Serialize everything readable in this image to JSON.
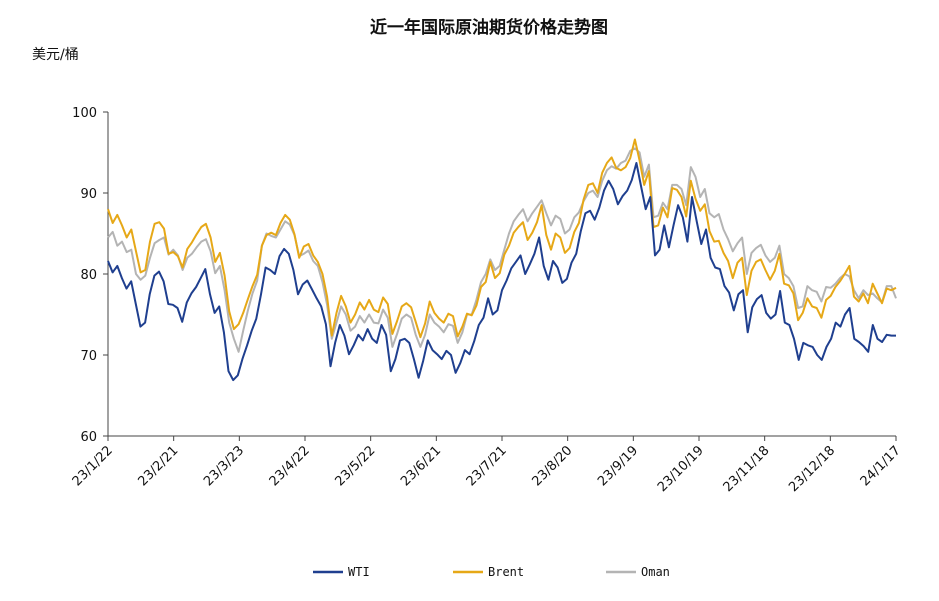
{
  "chart_data": {
    "type": "line",
    "title": "近一年国际原油期货价格走势图",
    "ylabel": "美元/桶",
    "xlabel": "",
    "ylim": [
      60,
      100
    ],
    "yticks": [
      60,
      70,
      80,
      90,
      100
    ],
    "x_start": "23/1/22",
    "x_end": "24/1/17",
    "xticks": [
      "23/1/22",
      "23/2/21",
      "23/3/23",
      "23/4/22",
      "23/5/22",
      "23/6/21",
      "23/7/21",
      "23/8/20",
      "23/9/19",
      "23/10/19",
      "23/11/18",
      "23/12/18",
      "24/1/17"
    ],
    "grid": false,
    "legend_position": "bottom",
    "series": [
      {
        "name": "WTI",
        "color": "#1f3f8f",
        "values": [
          81.6,
          80.2,
          81.0,
          79.5,
          78.2,
          79.1,
          76.3,
          73.5,
          74.0,
          77.5,
          79.8,
          80.3,
          79.1,
          76.3,
          76.2,
          75.8,
          74.1,
          76.5,
          77.6,
          78.4,
          79.5,
          80.6,
          77.5,
          75.2,
          76.0,
          72.8,
          68.0,
          66.9,
          67.5,
          69.5,
          71.2,
          73.0,
          74.5,
          77.5,
          80.8,
          80.5,
          80.0,
          82.2,
          83.1,
          82.5,
          80.5,
          77.5,
          78.7,
          79.2,
          78.1,
          77.0,
          76.0,
          73.8,
          68.6,
          71.5,
          73.7,
          72.4,
          70.1,
          71.2,
          72.5,
          71.8,
          73.2,
          72.0,
          71.5,
          73.7,
          72.5,
          68.0,
          69.5,
          71.8,
          72.0,
          71.5,
          69.5,
          67.2,
          69.3,
          71.8,
          70.6,
          70.1,
          69.5,
          70.5,
          70.0,
          67.8,
          69.0,
          70.6,
          70.1,
          71.7,
          73.7,
          74.6,
          77.0,
          75.0,
          75.5,
          78.0,
          79.2,
          80.7,
          81.5,
          82.3,
          80.0,
          81.2,
          82.5,
          84.5,
          81.0,
          79.3,
          81.6,
          80.8,
          78.9,
          79.4,
          81.4,
          82.5,
          85.3,
          87.5,
          87.8,
          86.7,
          88.2,
          90.3,
          91.5,
          90.5,
          88.6,
          89.6,
          90.3,
          91.6,
          93.7,
          90.8,
          88.0,
          89.5,
          82.3,
          83.0,
          86.0,
          83.3,
          86.0,
          88.5,
          87.0,
          84.0,
          89.5,
          86.5,
          83.7,
          85.5,
          82.0,
          80.8,
          80.6,
          78.5,
          77.7,
          75.5,
          77.5,
          78.0,
          72.8,
          75.9,
          76.9,
          77.4,
          75.2,
          74.5,
          75.0,
          77.9,
          74.0,
          73.7,
          72.0,
          69.4,
          71.5,
          71.2,
          71.0,
          70.0,
          69.4,
          71.0,
          72.0,
          74.0,
          73.5,
          75.0,
          75.8,
          72.0,
          71.6,
          71.1,
          70.4,
          73.7,
          72.0,
          71.6,
          72.5,
          72.4,
          72.4
        ]
      },
      {
        "name": "Brent",
        "color": "#e6a817",
        "values": [
          88.0,
          86.3,
          87.3,
          86.0,
          84.5,
          85.5,
          82.8,
          80.2,
          80.5,
          84.0,
          86.2,
          86.4,
          85.6,
          82.5,
          82.7,
          82.2,
          80.8,
          83.1,
          83.9,
          84.9,
          85.8,
          86.2,
          84.5,
          81.5,
          82.6,
          79.8,
          75.4,
          73.2,
          73.8,
          75.2,
          76.9,
          78.5,
          79.9,
          83.5,
          84.8,
          85.1,
          84.8,
          86.3,
          87.3,
          86.7,
          84.9,
          82.0,
          83.4,
          83.7,
          82.3,
          81.5,
          80.0,
          77.2,
          72.4,
          75.2,
          77.3,
          76.0,
          74.0,
          75.0,
          76.5,
          75.6,
          76.8,
          75.6,
          75.3,
          77.1,
          76.3,
          72.6,
          74.2,
          76.0,
          76.4,
          75.9,
          74.1,
          72.2,
          73.9,
          76.6,
          75.2,
          74.5,
          74.0,
          75.1,
          74.8,
          72.3,
          73.5,
          75.1,
          74.9,
          76.1,
          78.4,
          79.0,
          81.5,
          79.5,
          80.1,
          82.4,
          83.5,
          85.1,
          85.8,
          86.4,
          84.2,
          85.1,
          86.4,
          88.5,
          84.8,
          83.0,
          85.0,
          84.5,
          82.6,
          83.2,
          85.2,
          86.3,
          89.2,
          91.0,
          91.2,
          90.0,
          92.5,
          93.7,
          94.4,
          93.1,
          92.8,
          93.2,
          94.3,
          96.6,
          94.0,
          91.0,
          92.7,
          85.8,
          86.0,
          88.2,
          87.0,
          90.6,
          90.4,
          89.5,
          87.1,
          91.5,
          89.3,
          87.8,
          88.6,
          85.3,
          84.0,
          84.1,
          82.6,
          81.6,
          79.5,
          81.4,
          82.0,
          77.4,
          80.4,
          81.5,
          81.8,
          80.5,
          79.3,
          80.4,
          82.5,
          78.8,
          78.6,
          77.6,
          74.3,
          75.2,
          77.0,
          76.0,
          75.8,
          74.6,
          76.8,
          77.3,
          78.4,
          79.1,
          80.0,
          81.0,
          77.2,
          76.6,
          77.6,
          76.4,
          78.8,
          77.6,
          76.4,
          78.2,
          78.0,
          78.3
        ]
      },
      {
        "name": "Oman",
        "color": "#b4b4b4",
        "values": [
          84.5,
          85.2,
          83.5,
          84.0,
          82.7,
          83.0,
          80.0,
          79.3,
          79.8,
          82.0,
          83.8,
          84.2,
          84.5,
          82.4,
          83.0,
          82.3,
          80.5,
          82.0,
          82.5,
          83.3,
          84.0,
          84.3,
          82.8,
          80.1,
          81.0,
          78.0,
          74.0,
          72.0,
          70.4,
          73.0,
          75.5,
          77.6,
          79.2,
          83.5,
          85.0,
          84.7,
          84.5,
          85.5,
          86.5,
          86.1,
          84.8,
          82.2,
          82.5,
          82.9,
          81.6,
          81.0,
          79.0,
          76.2,
          72.0,
          74.0,
          76.0,
          75.0,
          73.0,
          73.5,
          74.8,
          74.0,
          75.0,
          74.0,
          73.9,
          75.6,
          74.6,
          71.0,
          72.6,
          74.5,
          75.0,
          74.6,
          72.5,
          71.0,
          72.5,
          75.0,
          74.0,
          73.5,
          72.8,
          73.8,
          73.6,
          71.5,
          72.8,
          75.0,
          75.0,
          76.8,
          79.0,
          80.0,
          81.8,
          80.5,
          81.0,
          83.0,
          85.0,
          86.5,
          87.3,
          88.0,
          86.5,
          87.5,
          88.3,
          89.1,
          87.5,
          86.0,
          87.2,
          86.8,
          85.0,
          85.5,
          87.0,
          87.6,
          89.0,
          90.0,
          90.3,
          89.5,
          91.5,
          92.8,
          93.3,
          93.0,
          93.7,
          94.0,
          95.2,
          95.5,
          95.0,
          92.0,
          93.5,
          87.0,
          87.2,
          88.8,
          88.0,
          91.0,
          91.0,
          90.5,
          88.5,
          93.2,
          92.0,
          89.5,
          90.5,
          87.5,
          87.0,
          87.4,
          85.5,
          84.3,
          82.8,
          83.8,
          84.5,
          80.0,
          82.6,
          83.2,
          83.6,
          82.3,
          81.5,
          82.0,
          83.5,
          80.0,
          79.5,
          78.5,
          75.8,
          76.0,
          78.5,
          78.0,
          77.8,
          76.6,
          78.4,
          78.3,
          78.8,
          79.5,
          80.0,
          79.7,
          78.0,
          77.0,
          78.0,
          77.4,
          77.6,
          77.0,
          76.5,
          78.5,
          78.5,
          77.0
        ]
      }
    ]
  }
}
